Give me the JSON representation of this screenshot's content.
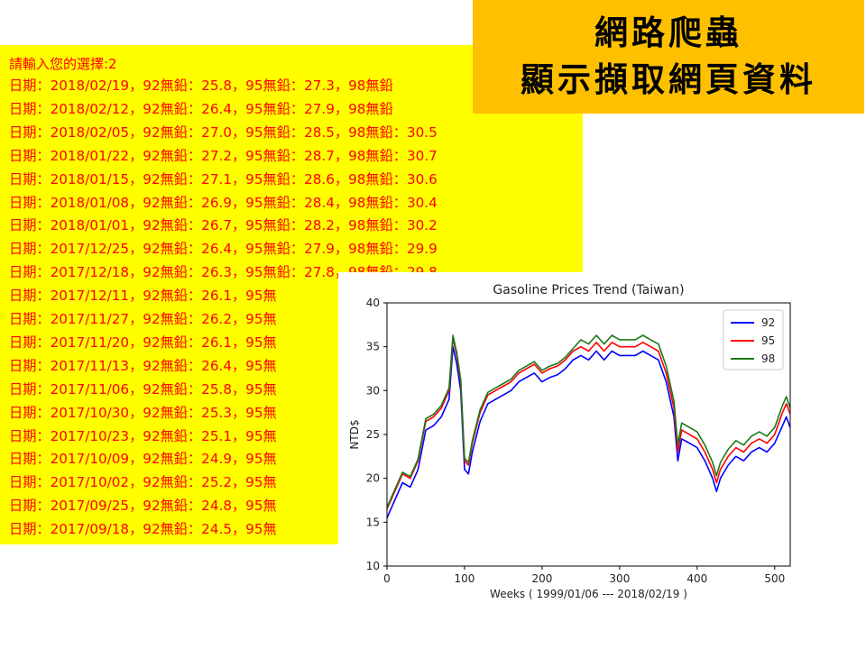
{
  "title_box": {
    "line1": "網路爬蟲",
    "line2": "顯示擷取網頁資料"
  },
  "console": {
    "prompt": "請輸入您的選擇:2",
    "rows": [
      "日期：2018/02/19，92無鉛：25.8，95無鉛：27.3，98無鉛",
      "日期：2018/02/12，92無鉛：26.4，95無鉛：27.9，98無鉛",
      "日期：2018/02/05，92無鉛：27.0，95無鉛：28.5，98無鉛：30.5",
      "日期：2018/01/22，92無鉛：27.2，95無鉛：28.7，98無鉛：30.7",
      "日期：2018/01/15，92無鉛：27.1，95無鉛：28.6，98無鉛：30.6",
      "日期：2018/01/08，92無鉛：26.9，95無鉛：28.4，98無鉛：30.4",
      "日期：2018/01/01，92無鉛：26.7，95無鉛：28.2，98無鉛：30.2",
      "日期：2017/12/25，92無鉛：26.4，95無鉛：27.9，98無鉛：29.9",
      "日期：2017/12/18，92無鉛：26.3，95無鉛：27.8，98無鉛：29.8",
      "日期：2017/12/11，92無鉛：26.1，95無",
      "日期：2017/11/27，92無鉛：26.2，95無",
      "日期：2017/11/20，92無鉛：26.1，95無",
      "日期：2017/11/13，92無鉛：26.4，95無",
      "日期：2017/11/06，92無鉛：25.8，95無",
      "日期：2017/10/30，92無鉛：25.3，95無",
      "日期：2017/10/23，92無鉛：25.1，95無",
      "日期：2017/10/09，92無鉛：24.9，95無",
      "日期：2017/10/02，92無鉛：25.2，95無",
      "日期：2017/09/25，92無鉛：24.8，95無",
      "日期：2017/09/18，92無鉛：24.5，95無"
    ]
  },
  "colors": {
    "console_bg": "#ffff00",
    "console_text": "#ff0000",
    "title_bg": "#ffc000",
    "series_92": "#0000ff",
    "series_95": "#ff0000",
    "series_98": "#1a7a1a"
  },
  "chart_data": {
    "type": "line",
    "title": "Gasoline Prices Trend (Taiwan)",
    "xlabel": "Weeks ( 1999/01/06 --- 2018/02/19 )",
    "ylabel": "NTD$",
    "xlim": [
      0,
      520
    ],
    "ylim": [
      10,
      40
    ],
    "xticks": [
      0,
      100,
      200,
      300,
      400,
      500
    ],
    "yticks": [
      10,
      15,
      20,
      25,
      30,
      35,
      40
    ],
    "legend": "top-right",
    "grid": false,
    "x": [
      0,
      10,
      20,
      30,
      40,
      50,
      60,
      70,
      80,
      85,
      90,
      95,
      100,
      105,
      110,
      120,
      130,
      140,
      150,
      160,
      170,
      180,
      190,
      200,
      210,
      220,
      230,
      240,
      250,
      260,
      270,
      280,
      290,
      300,
      310,
      320,
      330,
      340,
      350,
      360,
      370,
      375,
      380,
      390,
      400,
      410,
      420,
      425,
      430,
      440,
      450,
      460,
      470,
      480,
      490,
      500,
      510,
      515,
      520
    ],
    "series": [
      {
        "name": "92",
        "color": "#0000ff",
        "values": [
          15.5,
          17.5,
          19.5,
          19.0,
          21.0,
          25.5,
          26.0,
          27.0,
          29.0,
          35.0,
          33.0,
          30.0,
          21.0,
          20.5,
          23.0,
          26.5,
          28.5,
          29.0,
          29.5,
          30.0,
          31.0,
          31.5,
          32.0,
          31.0,
          31.5,
          31.8,
          32.5,
          33.5,
          34.0,
          33.5,
          34.5,
          33.5,
          34.5,
          34.0,
          34.0,
          34.0,
          34.5,
          34.0,
          33.5,
          31.0,
          27.0,
          22.0,
          24.5,
          24.0,
          23.5,
          22.0,
          20.0,
          18.5,
          20.0,
          21.5,
          22.5,
          22.0,
          23.0,
          23.5,
          23.0,
          24.0,
          26.0,
          27.0,
          25.8
        ]
      },
      {
        "name": "95",
        "color": "#ff0000",
        "values": [
          16.5,
          18.5,
          20.5,
          20.0,
          22.0,
          26.5,
          27.0,
          28.0,
          30.0,
          36.0,
          34.0,
          31.0,
          22.0,
          21.5,
          24.0,
          27.5,
          29.5,
          30.0,
          30.5,
          31.0,
          32.0,
          32.5,
          33.0,
          32.0,
          32.5,
          32.8,
          33.5,
          34.5,
          35.0,
          34.5,
          35.5,
          34.5,
          35.5,
          35.0,
          35.0,
          35.0,
          35.5,
          35.0,
          34.5,
          32.0,
          28.0,
          23.0,
          25.5,
          25.0,
          24.5,
          23.0,
          21.0,
          19.5,
          21.0,
          22.5,
          23.5,
          23.0,
          24.0,
          24.5,
          24.0,
          25.0,
          27.5,
          28.5,
          27.3
        ]
      },
      {
        "name": "98",
        "color": "#1a7a1a",
        "values": [
          16.7,
          18.7,
          20.7,
          20.2,
          22.2,
          26.8,
          27.3,
          28.3,
          30.3,
          36.3,
          34.3,
          31.3,
          22.3,
          21.8,
          24.3,
          27.8,
          29.8,
          30.3,
          30.8,
          31.3,
          32.3,
          32.8,
          33.3,
          32.3,
          32.8,
          33.1,
          33.8,
          34.8,
          35.8,
          35.3,
          36.3,
          35.3,
          36.3,
          35.8,
          35.8,
          35.8,
          36.3,
          35.8,
          35.3,
          32.8,
          28.8,
          23.8,
          26.3,
          25.8,
          25.3,
          23.8,
          21.8,
          20.3,
          21.8,
          23.3,
          24.3,
          23.8,
          24.8,
          25.3,
          24.8,
          25.8,
          28.3,
          29.3,
          28.0
        ]
      }
    ]
  }
}
